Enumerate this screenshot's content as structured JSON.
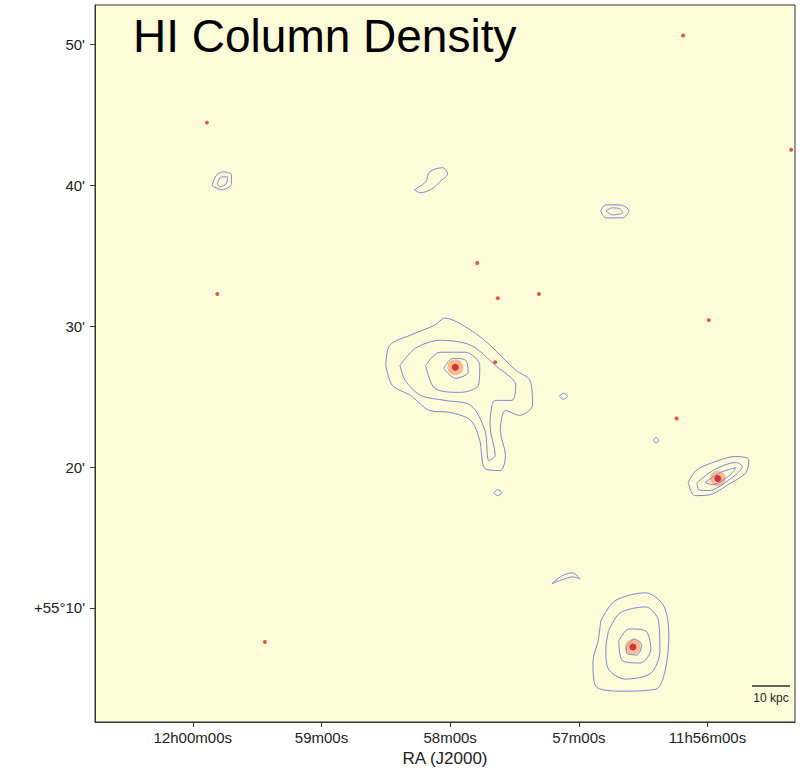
{
  "chart_data": {
    "type": "contour",
    "title": "HI Column Density",
    "xlabel": "RA (J2000)",
    "annotation": "10 kpc",
    "color": "#7b86d6",
    "grid": false,
    "xlim": [
      60.76,
      55.32
    ],
    "ylim": [
      1.9,
      52.8
    ],
    "xticks": [
      {
        "value": 60,
        "label": "12h00m00s"
      },
      {
        "value": 59,
        "label": "59m00s"
      },
      {
        "value": 58,
        "label": "58m00s"
      },
      {
        "value": 57,
        "label": "57m00s"
      },
      {
        "value": 56,
        "label": "11h56m00s"
      }
    ],
    "yticks": [
      {
        "value": 10,
        "label": "+55°10'"
      },
      {
        "value": 20,
        "label": "20'"
      },
      {
        "value": 30,
        "label": "30'"
      },
      {
        "value": 40,
        "label": "40'"
      },
      {
        "value": 50,
        "label": "50'"
      }
    ],
    "contours": [
      [
        [
          59.85,
          39.96
        ],
        [
          59.82,
          40.68
        ],
        [
          59.76,
          40.96
        ],
        [
          59.7,
          40.75
        ],
        [
          59.7,
          40.11
        ],
        [
          59.77,
          39.68
        ],
        [
          59.85,
          39.96
        ]
      ],
      [
        [
          59.81,
          40.11
        ],
        [
          59.78,
          40.6
        ],
        [
          59.73,
          40.6
        ],
        [
          59.74,
          40.11
        ],
        [
          59.79,
          39.89
        ],
        [
          59.81,
          40.11
        ]
      ],
      [
        [
          58.28,
          39.68
        ],
        [
          58.19,
          40.25
        ],
        [
          58.16,
          40.96
        ],
        [
          58.06,
          41.25
        ],
        [
          58.02,
          40.82
        ],
        [
          58.08,
          40.25
        ],
        [
          58.14,
          39.75
        ],
        [
          58.23,
          39.47
        ],
        [
          58.28,
          39.68
        ]
      ],
      [
        [
          56.83,
          38.19
        ],
        [
          56.79,
          38.61
        ],
        [
          56.68,
          38.61
        ],
        [
          56.61,
          38.19
        ],
        [
          56.66,
          37.69
        ],
        [
          56.79,
          37.69
        ],
        [
          56.83,
          38.19
        ]
      ],
      [
        [
          56.79,
          38.19
        ],
        [
          56.74,
          38.4
        ],
        [
          56.68,
          38.33
        ],
        [
          56.66,
          38.05
        ],
        [
          56.74,
          37.9
        ],
        [
          56.79,
          38.19
        ]
      ],
      [
        [
          56.15,
          18.9
        ],
        [
          56.09,
          19.75
        ],
        [
          55.96,
          20.32
        ],
        [
          55.78,
          20.75
        ],
        [
          55.68,
          20.53
        ],
        [
          55.7,
          19.61
        ],
        [
          55.84,
          18.75
        ],
        [
          55.98,
          18.04
        ],
        [
          56.1,
          17.97
        ],
        [
          56.15,
          18.9
        ]
      ],
      [
        [
          56.08,
          18.9
        ],
        [
          55.96,
          19.75
        ],
        [
          55.78,
          20.32
        ],
        [
          55.73,
          20.04
        ],
        [
          55.82,
          19.18
        ],
        [
          55.99,
          18.33
        ],
        [
          56.07,
          18.4
        ],
        [
          56.08,
          18.9
        ]
      ],
      [
        [
          56.02,
          18.9
        ],
        [
          55.9,
          19.61
        ],
        [
          55.78,
          19.96
        ],
        [
          55.82,
          19.47
        ],
        [
          55.96,
          18.75
        ],
        [
          56.02,
          18.9
        ]
      ],
      [
        [
          56.83,
          9.07
        ],
        [
          56.72,
          10.5
        ],
        [
          56.48,
          11.07
        ],
        [
          56.34,
          10.14
        ],
        [
          56.3,
          8.01
        ],
        [
          56.33,
          5.52
        ],
        [
          56.4,
          4.23
        ],
        [
          56.68,
          4.09
        ],
        [
          56.87,
          4.45
        ],
        [
          56.89,
          6.23
        ],
        [
          56.85,
          7.65
        ],
        [
          56.83,
          9.07
        ]
      ],
      [
        [
          56.77,
          8.36
        ],
        [
          56.68,
          9.64
        ],
        [
          56.48,
          10.07
        ],
        [
          56.38,
          9.07
        ],
        [
          56.37,
          6.94
        ],
        [
          56.44,
          5.37
        ],
        [
          56.64,
          4.95
        ],
        [
          56.77,
          5.66
        ],
        [
          56.79,
          7.08
        ],
        [
          56.77,
          8.36
        ]
      ],
      [
        [
          56.69,
          7.65
        ],
        [
          56.61,
          8.51
        ],
        [
          56.48,
          8.36
        ],
        [
          56.44,
          7.08
        ],
        [
          56.52,
          6.09
        ],
        [
          56.66,
          6.23
        ],
        [
          56.69,
          7.65
        ]
      ],
      [
        [
          56.63,
          7.22
        ],
        [
          56.57,
          7.79
        ],
        [
          56.51,
          7.36
        ],
        [
          56.55,
          6.65
        ],
        [
          56.63,
          6.8
        ],
        [
          56.63,
          7.22
        ]
      ],
      [
        [
          57.21,
          11.71
        ],
        [
          57.13,
          12.28
        ],
        [
          57.05,
          12.49
        ],
        [
          56.99,
          12.06
        ],
        [
          57.05,
          12.2
        ],
        [
          57.13,
          12.0
        ],
        [
          57.21,
          11.71
        ]
      ],
      [
        [
          58.5,
          27.22
        ],
        [
          58.47,
          28.65
        ],
        [
          58.31,
          29.36
        ],
        [
          58.12,
          30.07
        ],
        [
          58.04,
          30.57
        ],
        [
          57.84,
          29.72
        ],
        [
          57.69,
          28.65
        ],
        [
          57.49,
          26.87
        ],
        [
          57.38,
          26.16
        ],
        [
          57.36,
          24.38
        ],
        [
          57.46,
          23.67
        ],
        [
          57.57,
          24.02
        ],
        [
          57.61,
          22.6
        ],
        [
          57.57,
          20.82
        ],
        [
          57.61,
          19.75
        ],
        [
          57.73,
          19.89
        ],
        [
          57.77,
          21.89
        ],
        [
          57.84,
          23.31
        ],
        [
          58.0,
          23.88
        ],
        [
          58.16,
          24.02
        ],
        [
          58.31,
          25.09
        ],
        [
          58.45,
          25.8
        ],
        [
          58.5,
          27.22
        ]
      ],
      [
        [
          58.39,
          27.22
        ],
        [
          58.27,
          28.43
        ],
        [
          58.08,
          29.0
        ],
        [
          57.84,
          28.65
        ],
        [
          57.65,
          27.22
        ],
        [
          57.49,
          25.8
        ],
        [
          57.52,
          24.73
        ],
        [
          57.65,
          24.73
        ],
        [
          57.69,
          22.95
        ],
        [
          57.65,
          20.82
        ],
        [
          57.7,
          20.46
        ],
        [
          57.73,
          22.6
        ],
        [
          57.84,
          24.38
        ],
        [
          58.04,
          24.73
        ],
        [
          58.23,
          25.09
        ],
        [
          58.35,
          26.16
        ],
        [
          58.39,
          27.22
        ]
      ],
      [
        [
          58.19,
          27.22
        ],
        [
          58.08,
          28.15
        ],
        [
          57.88,
          28.15
        ],
        [
          57.77,
          27.22
        ],
        [
          57.78,
          25.8
        ],
        [
          57.92,
          25.3
        ],
        [
          58.12,
          25.59
        ],
        [
          58.19,
          27.22
        ]
      ],
      [
        [
          58.05,
          27.01
        ],
        [
          57.98,
          27.72
        ],
        [
          57.88,
          27.58
        ],
        [
          57.86,
          26.73
        ],
        [
          57.96,
          26.3
        ],
        [
          58.05,
          27.01
        ]
      ],
      [
        [
          57.15,
          25.02
        ],
        [
          57.12,
          25.25
        ],
        [
          57.09,
          25.02
        ],
        [
          57.12,
          24.8
        ],
        [
          57.15,
          25.02
        ]
      ],
      [
        [
          57.66,
          18.18
        ],
        [
          57.63,
          18.4
        ],
        [
          57.6,
          18.18
        ],
        [
          57.63,
          17.96
        ],
        [
          57.66,
          18.18
        ]
      ],
      [
        [
          56.42,
          21.89
        ],
        [
          56.4,
          22.1
        ],
        [
          56.38,
          21.89
        ],
        [
          56.4,
          21.7
        ],
        [
          56.42,
          21.89
        ]
      ]
    ],
    "galaxies": [
      [
        57.96,
        27.08
      ],
      [
        55.92,
        19.18
      ],
      [
        56.58,
        7.22
      ]
    ],
    "stars": [
      [
        59.89,
        44.45
      ],
      [
        55.35,
        42.53
      ],
      [
        57.63,
        31.99
      ],
      [
        56.19,
        50.64
      ],
      [
        56.24,
        23.45
      ],
      [
        59.44,
        7.58
      ],
      [
        57.31,
        32.28
      ],
      [
        59.81,
        32.28
      ],
      [
        57.79,
        34.48
      ],
      [
        55.99,
        30.43
      ],
      [
        57.65,
        27.44
      ]
    ]
  }
}
